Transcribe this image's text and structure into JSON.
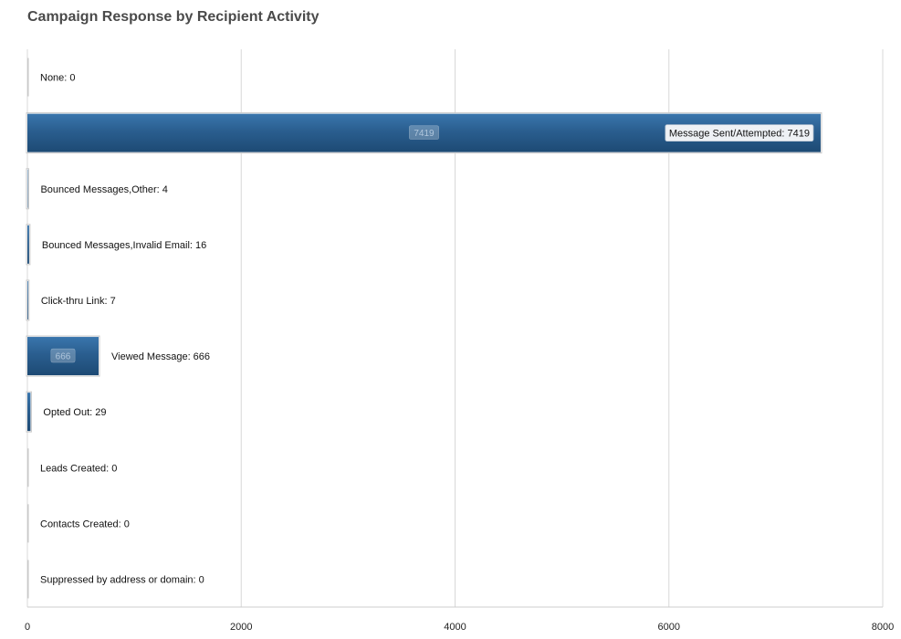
{
  "chart_data": {
    "type": "bar",
    "orientation": "horizontal",
    "title": "Campaign Response by Recipient Activity",
    "xlabel": "",
    "ylabel": "",
    "xlim": [
      0,
      8000
    ],
    "x_ticks": [
      "0",
      "2000",
      "4000",
      "6000",
      "8000"
    ],
    "grid": true,
    "categories": [
      "None",
      "Message Sent/Attempted",
      "Bounced Messages,Other",
      "Bounced Messages,Invalid Email",
      "Click-thru Link",
      "Viewed Message",
      "Opted Out",
      "Leads Created",
      "Contacts Created",
      "Suppressed by address or domain"
    ],
    "values": [
      0,
      7419,
      4,
      16,
      7,
      666,
      29,
      0,
      0,
      0
    ],
    "bar_color": "#2a5e8f",
    "grid_color": "#d8d8d8"
  }
}
